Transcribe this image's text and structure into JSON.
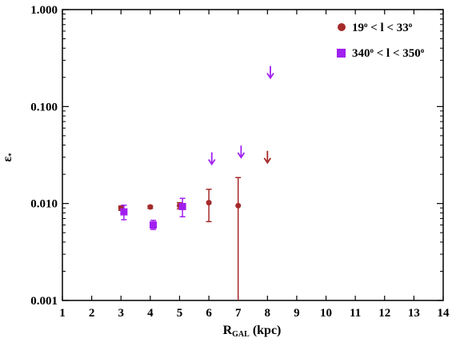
{
  "chart_data": {
    "type": "scatter",
    "xlabel": {
      "main": "R",
      "sub": "GAL",
      "tail": " (kpc)"
    },
    "ylabel": {
      "main": "ε",
      "sub": "*"
    },
    "x_ticks": [
      "1",
      "2",
      "3",
      "4",
      "5",
      "6",
      "7",
      "8",
      "9",
      "10",
      "11",
      "12",
      "13",
      "14"
    ],
    "y_ticks": [
      "0.001",
      "0.010",
      "0.100",
      "1.000"
    ],
    "xlim": [
      1,
      14
    ],
    "ylim": [
      0.001,
      1.0
    ],
    "yscale": "log",
    "grid": false,
    "legend_position": "top-right",
    "series": [
      {
        "name": "19° < l < 33°",
        "legend": {
          "lo": "19",
          "lmid": " < l < ",
          "hi": "33"
        },
        "color": "#a52a2a",
        "marker": "circle",
        "points": [
          {
            "x": 3.0,
            "y": 0.009,
            "lo": 0.0085,
            "hi": 0.0094
          },
          {
            "x": 4.0,
            "y": 0.0092,
            "lo": 0.0089,
            "hi": 0.0095
          },
          {
            "x": 5.0,
            "y": 0.0095,
            "lo": 0.0088,
            "hi": 0.0102
          },
          {
            "x": 6.0,
            "y": 0.0102,
            "lo": 0.0065,
            "hi": 0.014
          },
          {
            "x": 7.0,
            "y": 0.0095,
            "lo": 0.001,
            "hi": 0.0185
          }
        ],
        "upper_limits": [
          {
            "x": 8.0,
            "y": 0.03
          }
        ]
      },
      {
        "name": "340° < l < 350°",
        "legend": {
          "lo": "340",
          "lmid": " < l < ",
          "hi": "350"
        },
        "color": "#a020f0",
        "marker": "square",
        "points": [
          {
            "x": 3.1,
            "y": 0.0082,
            "lo": 0.0068,
            "hi": 0.0096
          },
          {
            "x": 4.1,
            "y": 0.006,
            "lo": 0.0054,
            "hi": 0.0067
          },
          {
            "x": 5.1,
            "y": 0.0093,
            "lo": 0.0073,
            "hi": 0.0113
          }
        ],
        "upper_limits": [
          {
            "x": 6.1,
            "y": 0.029
          },
          {
            "x": 7.1,
            "y": 0.034
          },
          {
            "x": 8.1,
            "y": 0.225
          }
        ]
      }
    ]
  }
}
